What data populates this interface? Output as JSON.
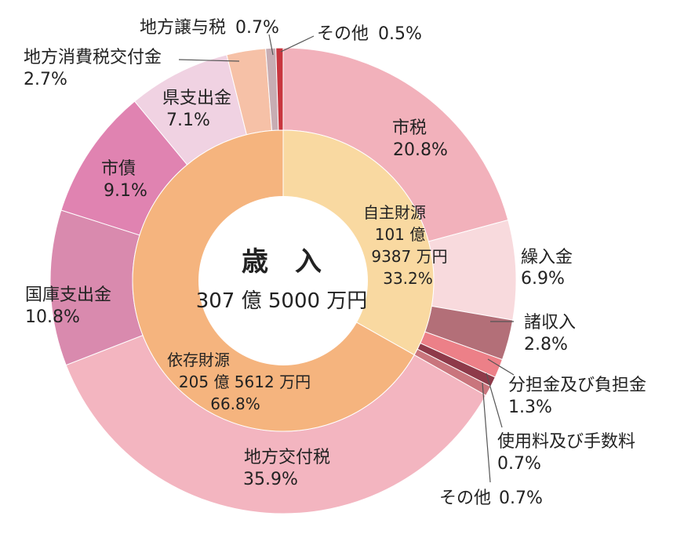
{
  "chart_data": {
    "type": "pie",
    "center": {
      "title": "歳　入",
      "total": "307 億 5000 万円"
    },
    "inner": [
      {
        "name": "自主財源",
        "amount": "101 億",
        "amount2": "9387 万円",
        "pct": "33.2%",
        "value": 33.2,
        "color": "#f9d9a1"
      },
      {
        "name": "依存財源",
        "amount": "205 億 5612 万円",
        "amount2": "",
        "pct": "66.8%",
        "value": 66.8,
        "color": "#f5b47e"
      }
    ],
    "outer": [
      {
        "name": "市税",
        "pct": "20.8%",
        "value": 20.8,
        "color": "#f2b1bb"
      },
      {
        "name": "繰入金",
        "pct": "6.9%",
        "value": 6.9,
        "color": "#f8dadd"
      },
      {
        "name": "諸収入",
        "pct": "2.8%",
        "value": 2.8,
        "color": "#b36f78"
      },
      {
        "name": "分担金及び負担金",
        "pct": "1.3%",
        "value": 1.3,
        "color": "#ec8088"
      },
      {
        "name": "使用料及び手数料",
        "pct": "0.7%",
        "value": 0.7,
        "color": "#8e3a4a"
      },
      {
        "name": "その他",
        "pct": "0.7%",
        "value": 0.7,
        "color": "#c9757d"
      },
      {
        "name": "地方交付税",
        "pct": "35.9%",
        "value": 35.9,
        "color": "#f3b5c0"
      },
      {
        "name": "国庫支出金",
        "pct": "10.8%",
        "value": 10.8,
        "color": "#d98aae"
      },
      {
        "name": "市債",
        "pct": "9.1%",
        "value": 9.1,
        "color": "#e083b1"
      },
      {
        "name": "県支出金",
        "pct": "7.1%",
        "value": 7.1,
        "color": "#f0d2e2"
      },
      {
        "name": "地方消費税交付金",
        "pct": "2.7%",
        "value": 2.7,
        "color": "#f6c1a7"
      },
      {
        "name": "地方譲与税",
        "pct": "0.7%",
        "value": 0.7,
        "color": "#c7adb3"
      },
      {
        "name": "その他",
        "pct": "0.5%",
        "value": 0.5,
        "color": "#c8353e"
      }
    ]
  }
}
